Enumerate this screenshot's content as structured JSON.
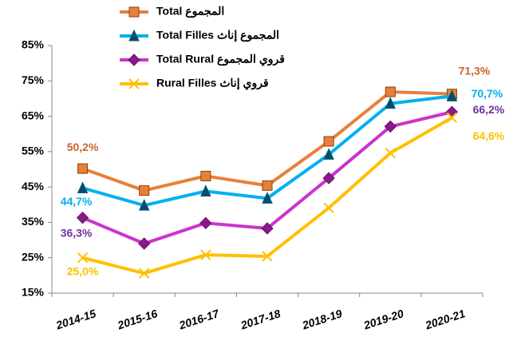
{
  "chart_data": {
    "type": "line",
    "categories": [
      "2014-15",
      "2015-16",
      "2016-17",
      "2017-18",
      "2018-19",
      "2019-20",
      "2020-21"
    ],
    "series": [
      {
        "name": "Total المجموع",
        "color": "#E8803A",
        "label_color": "#C8642A",
        "marker": "square",
        "values": [
          50.2,
          44.0,
          48.1,
          45.4,
          57.9,
          71.9,
          71.3
        ],
        "value_labels": [
          "50,2%",
          null,
          null,
          null,
          null,
          null,
          "71,3%"
        ]
      },
      {
        "name": "Total Filles المجموع إناث",
        "color": "#00B0F0",
        "label_color": "#00B0F0",
        "marker": "triangle",
        "values": [
          44.7,
          39.8,
          43.8,
          41.8,
          54.2,
          68.6,
          70.7
        ],
        "value_labels": [
          "44,7%",
          null,
          null,
          null,
          null,
          null,
          "70,7%"
        ]
      },
      {
        "name": "Total Rural قروي المجموع",
        "color": "#CC33CC",
        "label_color": "#7030A0",
        "marker": "diamond",
        "values": [
          36.3,
          29.0,
          34.8,
          33.3,
          47.5,
          62.1,
          66.2
        ],
        "value_labels": [
          "36,3%",
          null,
          null,
          null,
          null,
          null,
          "66,2%"
        ]
      },
      {
        "name": "Rural Filles قروي إناث",
        "color": "#FFC000",
        "label_color": "#FFC000",
        "marker": "x",
        "values": [
          25.0,
          20.6,
          25.8,
          25.4,
          39.1,
          54.6,
          64.6
        ],
        "value_labels": [
          "25,0%",
          null,
          null,
          null,
          null,
          null,
          "64,6%"
        ]
      }
    ],
    "ylim": [
      15,
      85
    ],
    "yticks": [
      {
        "value": 15,
        "label": "15%"
      },
      {
        "value": 25,
        "label": "25%"
      },
      {
        "value": 35,
        "label": "35%"
      },
      {
        "value": 45,
        "label": "45%"
      },
      {
        "value": 55,
        "label": "55%"
      },
      {
        "value": 65,
        "label": "65%"
      },
      {
        "value": 75,
        "label": "75%"
      },
      {
        "value": 85,
        "label": "85%"
      }
    ],
    "grid": false
  }
}
